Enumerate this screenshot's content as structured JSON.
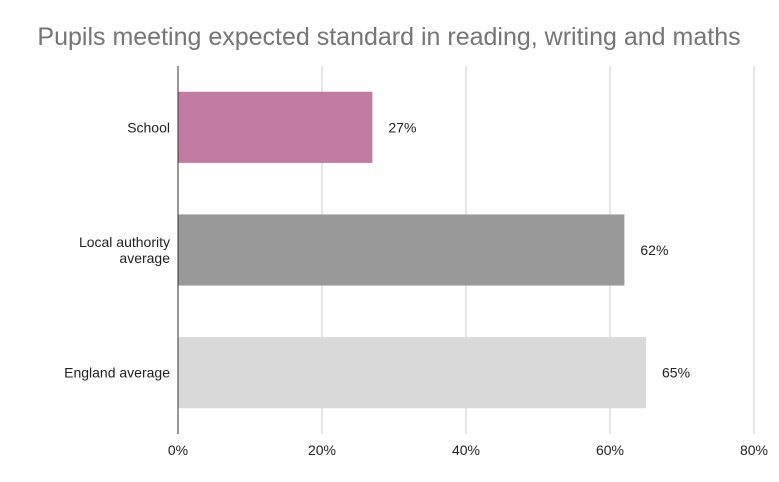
{
  "chart_data": {
    "type": "bar",
    "orientation": "horizontal",
    "title": "Pupils meeting expected standard in reading, writing and maths",
    "categories": [
      "School",
      "Local authority average",
      "England average"
    ],
    "category_lines": [
      [
        "School"
      ],
      [
        "Local authority",
        "average"
      ],
      [
        "England average"
      ]
    ],
    "values": [
      27,
      62,
      65
    ],
    "data_labels": [
      "27%",
      "62%",
      "65%"
    ],
    "colors": [
      "#c27ba0",
      "#999999",
      "#d9d9d9"
    ],
    "xlim": [
      0,
      80
    ],
    "ticks": [
      0,
      20,
      40,
      60,
      80
    ],
    "tick_labels": [
      "0%",
      "20%",
      "40%",
      "60%",
      "80%"
    ],
    "xlabel": "",
    "ylabel": "",
    "grid": "vertical",
    "legend": "none"
  }
}
